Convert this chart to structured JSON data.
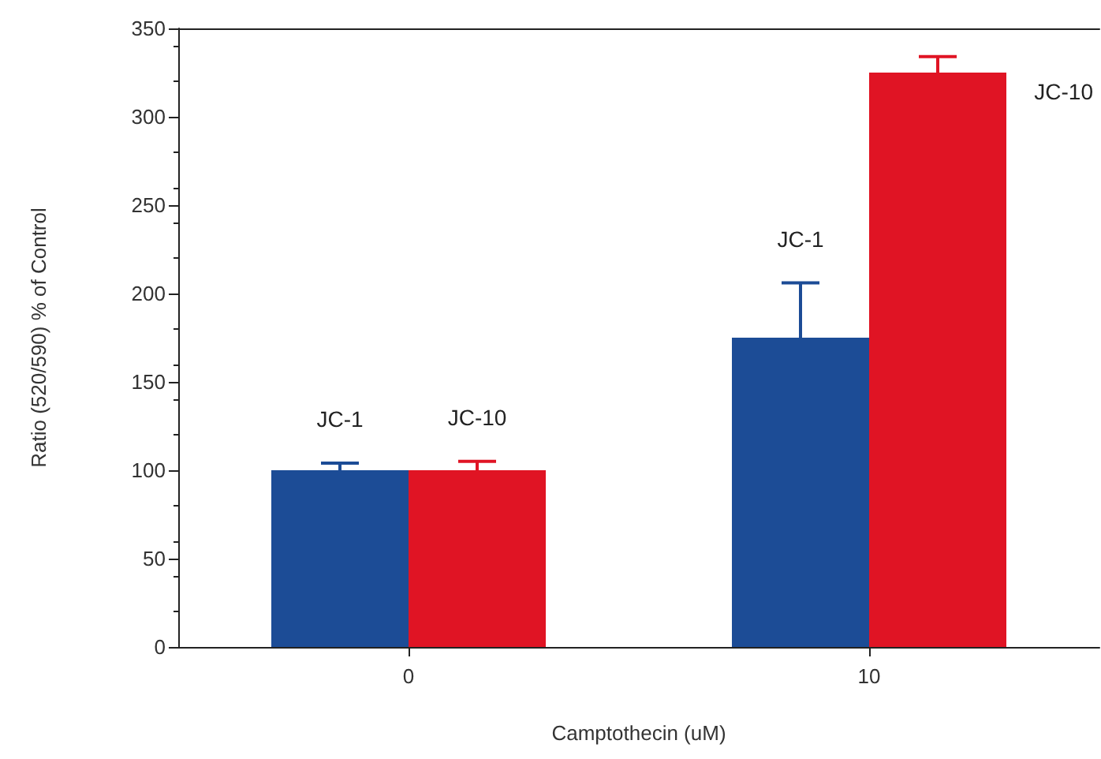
{
  "chart_data": {
    "type": "bar",
    "xlabel": "Camptothecin (uM)",
    "ylabel": "Ratio (520/590) % of Control",
    "categories": [
      "0",
      "10"
    ],
    "series": [
      {
        "name": "JC-1",
        "color": "#1c4c96",
        "values": [
          100,
          175
        ],
        "errors": [
          [
            100,
            104
          ],
          [
            175,
            206
          ]
        ]
      },
      {
        "name": "JC-10",
        "color": "#e01424",
        "values": [
          100,
          325
        ],
        "errors": [
          [
            100,
            105
          ],
          [
            325,
            334
          ]
        ]
      }
    ],
    "ylim": [
      0,
      350
    ],
    "yticks": [
      0,
      50,
      100,
      150,
      200,
      250,
      300,
      350
    ],
    "grid": false,
    "legend": false
  }
}
